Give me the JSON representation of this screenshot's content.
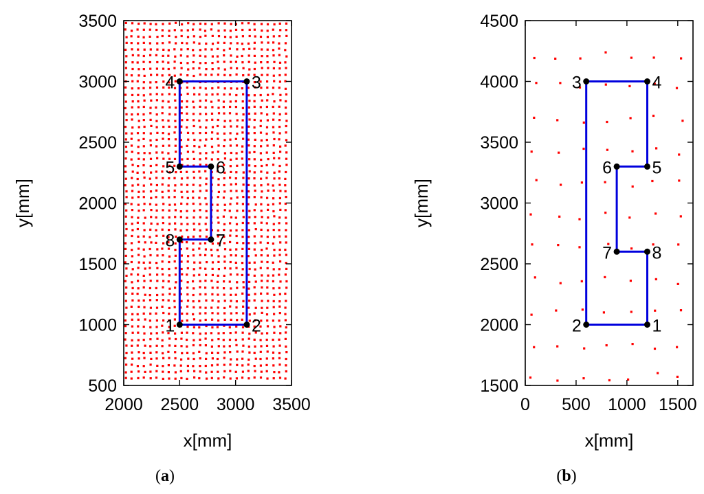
{
  "chart_data": [
    {
      "type": "scatter",
      "caption": "(a)",
      "xlabel": "x[mm]",
      "ylabel": "y[mm]",
      "xlim": [
        2000,
        3500
      ],
      "ylim": [
        500,
        3500
      ],
      "xticks": [
        2000,
        2500,
        3000,
        3500
      ],
      "yticks": [
        500,
        1000,
        1500,
        2000,
        2500,
        3000,
        3500
      ],
      "grid": false,
      "background_points": {
        "description": "dense red marker grid",
        "color": "#ff0000",
        "x_range": [
          2020,
          3480
        ],
        "x_step": 55,
        "y_range": [
          560,
          3490
        ],
        "y_step": 53
      },
      "path": {
        "color": "#0000dd",
        "points": [
          {
            "label": "1",
            "x": 2500,
            "y": 1000,
            "label_side": "left"
          },
          {
            "label": "2",
            "x": 3100,
            "y": 1000,
            "label_side": "right"
          },
          {
            "label": "3",
            "x": 3100,
            "y": 3000,
            "label_side": "right"
          },
          {
            "label": "4",
            "x": 2500,
            "y": 3000,
            "label_side": "left"
          },
          {
            "label": "5",
            "x": 2500,
            "y": 2300,
            "label_side": "left"
          },
          {
            "label": "6",
            "x": 2780,
            "y": 2300,
            "label_side": "right"
          },
          {
            "label": "7",
            "x": 2780,
            "y": 1700,
            "label_side": "right"
          },
          {
            "label": "8",
            "x": 2500,
            "y": 1700,
            "label_side": "left"
          },
          {
            "label": "",
            "x": 2500,
            "y": 1000,
            "label_side": "none"
          }
        ]
      }
    },
    {
      "type": "scatter",
      "caption": "(b)",
      "xlabel": "x[mm]",
      "ylabel": "y[mm]",
      "xlim": [
        0,
        1650
      ],
      "ylim": [
        1500,
        4500
      ],
      "xticks": [
        0,
        500,
        1000,
        1500
      ],
      "yticks": [
        1500,
        2000,
        2500,
        3000,
        3500,
        4000,
        4500
      ],
      "grid": false,
      "background_points": {
        "description": "sparse red marker grid",
        "color": "#ff0000",
        "x_range": [
          80,
          1640
        ],
        "x_step": 240,
        "y_range": [
          1570,
          4480
        ],
        "y_step": 265
      },
      "path": {
        "color": "#0000dd",
        "points": [
          {
            "label": "1",
            "x": 1200,
            "y": 2000,
            "label_side": "right"
          },
          {
            "label": "2",
            "x": 600,
            "y": 2000,
            "label_side": "left"
          },
          {
            "label": "3",
            "x": 600,
            "y": 4000,
            "label_side": "left"
          },
          {
            "label": "4",
            "x": 1200,
            "y": 4000,
            "label_side": "right"
          },
          {
            "label": "5",
            "x": 1200,
            "y": 3300,
            "label_side": "right"
          },
          {
            "label": "6",
            "x": 900,
            "y": 3300,
            "label_side": "left"
          },
          {
            "label": "7",
            "x": 900,
            "y": 2600,
            "label_side": "left"
          },
          {
            "label": "8",
            "x": 1200,
            "y": 2600,
            "label_side": "right"
          },
          {
            "label": "",
            "x": 1200,
            "y": 2000,
            "label_side": "none"
          }
        ]
      }
    }
  ]
}
